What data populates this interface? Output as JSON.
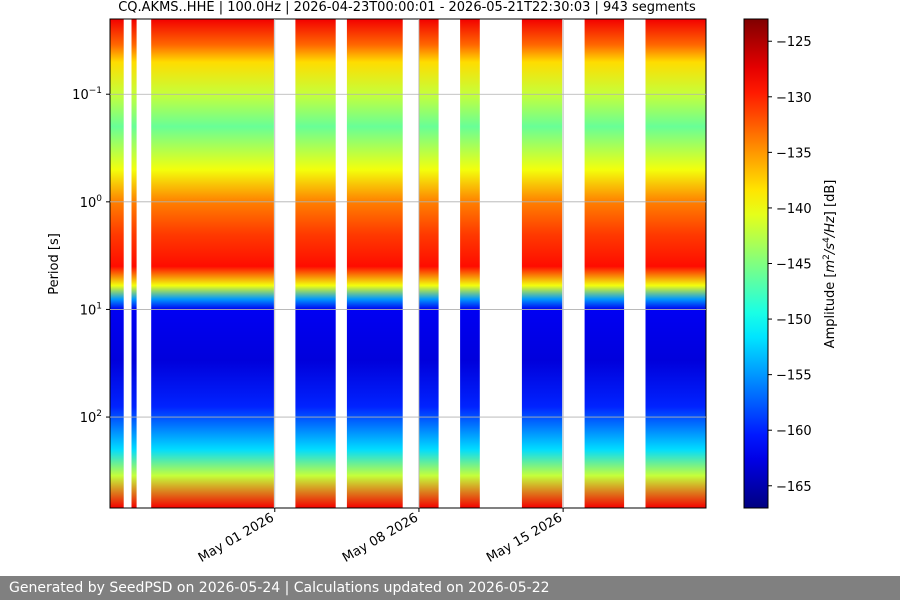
{
  "chart_data": {
    "type": "heatmap",
    "title": "CQ.AKMS..HHE | 100.0Hz | 2026-04-23T00:00:01 - 2026-05-21T22:30:03 | 943 segments",
    "xlabel": "",
    "ylabel": "Period [s]",
    "y_scale": "log",
    "y_axis_inverted": true,
    "ylim": [
      0.02,
      700
    ],
    "y_ticks": [
      {
        "value": 0.1,
        "base": "10",
        "exp": "−1"
      },
      {
        "value": 1,
        "base": "10",
        "exp": "0"
      },
      {
        "value": 10,
        "base": "10",
        "exp": "1"
      },
      {
        "value": 100,
        "base": "10",
        "exp": "2"
      }
    ],
    "xlim": [
      "2026-04-23T00:00:01",
      "2026-05-21T22:30:03"
    ],
    "x_ticks": [
      {
        "date": "2026-05-01",
        "label": "May 01 2026"
      },
      {
        "date": "2026-05-08",
        "label": "May 08 2026"
      },
      {
        "date": "2026-05-15",
        "label": "May 15 2026"
      }
    ],
    "grid": true,
    "segments": 943,
    "data_present": [
      [
        "2026-04-23T00:00:01",
        "2026-04-23T16:00:00"
      ],
      [
        "2026-04-24T01:00:00",
        "2026-04-24T07:00:00"
      ],
      [
        "2026-04-25T00:00:00",
        "2026-04-30T23:00:00"
      ],
      [
        "2026-05-02T00:00:00",
        "2026-05-03T23:00:00"
      ],
      [
        "2026-05-04T12:00:00",
        "2026-05-07T05:00:00"
      ],
      [
        "2026-05-08T00:00:00",
        "2026-05-08T23:00:00"
      ],
      [
        "2026-05-10T00:00:00",
        "2026-05-10T23:00:00"
      ],
      [
        "2026-05-13T00:00:00",
        "2026-05-14T23:00:00"
      ],
      [
        "2026-05-16T01:00:00",
        "2026-05-17T23:00:00"
      ],
      [
        "2026-05-19T00:00:00",
        "2026-05-21T22:30:03"
      ]
    ],
    "colorbar": {
      "label_prefix": "Amplitude [",
      "label_unit_m": "m",
      "label_unit_s": "s",
      "label_unit_hz": "/Hz",
      "label_suffix": "] [dB]",
      "label_exp_2": "2",
      "label_exp_4": "4",
      "range": [
        -167,
        -123
      ],
      "ticks": [
        "−125",
        "−130",
        "−135",
        "−140",
        "−145",
        "−150",
        "−155",
        "−160",
        "−165"
      ],
      "tick_values": [
        -125,
        -130,
        -135,
        -140,
        -145,
        -150,
        -155,
        -160,
        -165
      ],
      "colormap": "jet"
    },
    "amplitude_profile_by_period": [
      {
        "period": 0.02,
        "db": -128
      },
      {
        "period": 0.035,
        "db": -133
      },
      {
        "period": 0.05,
        "db": -138
      },
      {
        "period": 0.1,
        "db": -142
      },
      {
        "period": 0.2,
        "db": -146
      },
      {
        "period": 0.5,
        "db": -140
      },
      {
        "period": 1,
        "db": -134
      },
      {
        "period": 2,
        "db": -131
      },
      {
        "period": 4,
        "db": -129
      },
      {
        "period": 6,
        "db": -140
      },
      {
        "period": 8,
        "db": -155
      },
      {
        "period": 10,
        "db": -162
      },
      {
        "period": 30,
        "db": -163
      },
      {
        "period": 80,
        "db": -160
      },
      {
        "period": 200,
        "db": -152
      },
      {
        "period": 350,
        "db": -142
      },
      {
        "period": 700,
        "db": -128
      }
    ]
  },
  "footer": {
    "text": "Generated by SeedPSD on 2026-05-24 | Calculations updated on 2026-05-22"
  }
}
